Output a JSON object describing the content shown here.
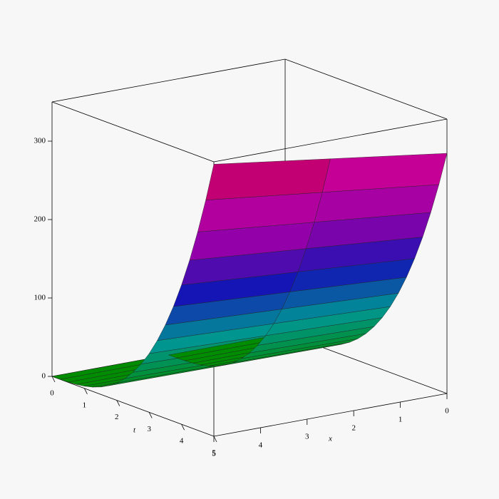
{
  "chart_data": {
    "type": "surface",
    "t_label": "t",
    "x_label": "x",
    "t": [
      0,
      0.25,
      0.5,
      0.75,
      1,
      1.25,
      1.5,
      1.75,
      2,
      2.25,
      2.5,
      2.75,
      3,
      3.25,
      3.5,
      3.75,
      4,
      4.25,
      4.5,
      4.75,
      5
    ],
    "x": [
      0,
      2.5,
      5
    ],
    "z": [
      [
        0,
        0,
        0.3,
        1,
        2.5,
        4.8,
        8.3,
        13.1,
        19.6,
        27.9,
        38.3,
        51,
        66.2,
        84.1,
        105,
        129.2,
        156.8,
        188.1,
        223.3,
        262.6,
        306.3
      ],
      [
        0,
        0,
        0.3,
        1.1,
        2.6,
        5.1,
        8.8,
        14,
        20.9,
        29.8,
        40.8,
        54.3,
        70.5,
        89.7,
        112,
        137.8,
        167.2,
        200.6,
        238.1,
        280,
        326.6
      ],
      [
        0,
        0,
        0.3,
        1.2,
        2.8,
        5.4,
        9.4,
        14.9,
        22.2,
        31.6,
        43.4,
        57.7,
        74.9,
        95.3,
        119,
        146.3,
        177.6,
        213,
        252.9,
        297.4,
        346.9
      ]
    ],
    "tlim": [
      0,
      5
    ],
    "xlim": [
      0,
      5
    ],
    "zlim": [
      0,
      350
    ],
    "tticks": [
      0,
      1,
      2,
      3,
      4,
      5
    ],
    "xticks": [
      0,
      1,
      2,
      3,
      4,
      5
    ],
    "zticks": [
      0,
      100,
      200,
      300
    ]
  }
}
